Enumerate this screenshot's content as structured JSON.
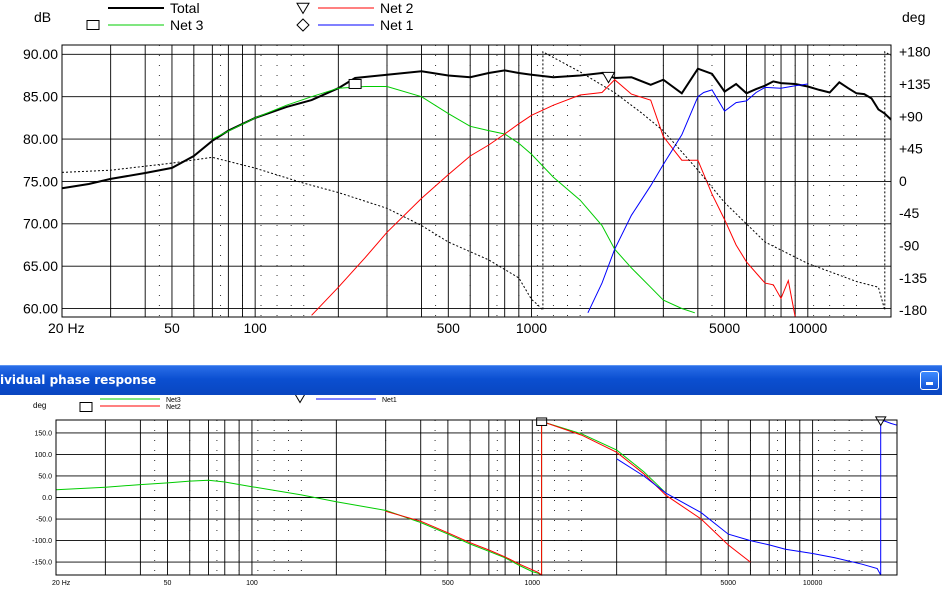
{
  "window": {
    "title": "ividual phase response",
    "minimize_icon": "minimize-icon"
  },
  "chart_data": [
    {
      "type": "line",
      "y_unit_left": "dB",
      "y_unit_right": "deg",
      "x_scale": "log",
      "xlim": [
        20,
        20000
      ],
      "ylim": [
        59,
        90
      ],
      "y2lim": [
        -180,
        180
      ],
      "grid": true,
      "legend_placement": "top",
      "x_tick_labels": [
        "20 Hz",
        "50",
        "100",
        "500",
        "1000",
        "5000",
        "10000"
      ],
      "x_ticks": [
        20,
        50,
        100,
        500,
        1000,
        5000,
        10000
      ],
      "y_tick_labels": [
        "90.00",
        "85.00",
        "80.00",
        "75.00",
        "70.00",
        "65.00",
        "60.00"
      ],
      "y_ticks": [
        90,
        85,
        80,
        75,
        70,
        65,
        60
      ],
      "y2_tick_labels": [
        "+180",
        "+135",
        "+90",
        "+45",
        "0",
        "-45",
        "-90",
        "-135",
        "-180"
      ],
      "y2_ticks": [
        180,
        135,
        90,
        45,
        0,
        -45,
        -90,
        -135,
        -180
      ],
      "legend": [
        {
          "name": "Total",
          "color": "#000000",
          "marker": "none"
        },
        {
          "name": "Net 3",
          "color": "#00cc00",
          "marker": "square"
        },
        {
          "name": "Net 2",
          "color": "#ff0000",
          "marker": "triangle-down"
        },
        {
          "name": "Net 1",
          "color": "#0000ff",
          "marker": "diamond"
        }
      ],
      "series": [
        {
          "name": "Total",
          "axis": "dB",
          "color": "#000000",
          "x": [
            20,
            25,
            30,
            40,
            50,
            60,
            70,
            80,
            100,
            130,
            160,
            200,
            230,
            300,
            400,
            500,
            600,
            700,
            800,
            900,
            1000,
            1200,
            1500,
            1800,
            2000,
            2300,
            2700,
            3000,
            3500,
            4000,
            4500,
            5000,
            5500,
            6000,
            6500,
            7000,
            7500,
            8000,
            9000,
            10000,
            11000,
            12000,
            13000,
            14000,
            15000,
            16000,
            17000,
            18000,
            19000,
            20000
          ],
          "y": [
            74.2,
            74.7,
            75.3,
            76,
            76.6,
            78,
            79.8,
            81,
            82.5,
            83.8,
            84.6,
            86,
            87.2,
            87.6,
            88,
            87.5,
            87.3,
            87.8,
            88.1,
            87.8,
            87.6,
            87.3,
            87.5,
            87.8,
            87.2,
            87.3,
            86.4,
            87,
            85.4,
            88.3,
            87.7,
            85.6,
            86.5,
            85.4,
            85.9,
            86.3,
            86.8,
            86.6,
            86.5,
            86.2,
            85.8,
            85.5,
            86.7,
            86,
            85.4,
            85.3,
            84.8,
            83.5,
            83,
            82.3
          ]
        },
        {
          "name": "Net 3",
          "axis": "dB",
          "color": "#00cc00",
          "x": [
            70,
            100,
            130,
            160,
            200,
            250,
            300,
            400,
            500,
            600,
            700,
            800,
            900,
            1000,
            1200,
            1500,
            1800,
            2000,
            2300,
            2700,
            3000,
            3500,
            3900
          ],
          "y": [
            80,
            82.5,
            84,
            85,
            86,
            86.2,
            86.2,
            85,
            83,
            81.5,
            81,
            80.6,
            79.5,
            78.2,
            75.5,
            72.8,
            69.8,
            67,
            64.8,
            62.5,
            61,
            60,
            59.5
          ]
        },
        {
          "name": "Net 2",
          "axis": "dB",
          "color": "#ff0000",
          "x": [
            160,
            200,
            250,
            300,
            400,
            500,
            600,
            700,
            800,
            900,
            1000,
            1200,
            1500,
            1800,
            2000,
            2300,
            2700,
            3000,
            3500,
            4000,
            4500,
            5000,
            5500,
            6000,
            7000,
            7500,
            8000,
            8500,
            9000
          ],
          "y": [
            59.2,
            62.5,
            66,
            69,
            73,
            75.8,
            78,
            79.3,
            80.6,
            81.8,
            82.8,
            84,
            85.2,
            85.5,
            87,
            85.3,
            84.6,
            80.3,
            77.5,
            77.5,
            73.5,
            70.5,
            67.5,
            65.5,
            63,
            62.8,
            61.2,
            63.3,
            59
          ]
        },
        {
          "name": "Net 1",
          "axis": "dB",
          "color": "#0000ff",
          "x": [
            1600,
            1800,
            2000,
            2300,
            2700,
            3000,
            3500,
            4000,
            4200,
            4500,
            5000,
            5500,
            6000,
            6500,
            7000,
            8000,
            9000,
            10000
          ],
          "y": [
            59.5,
            63,
            67,
            71,
            74.5,
            77,
            80.5,
            85,
            85.5,
            85.8,
            83.3,
            84.3,
            84.5,
            85.5,
            86.1,
            86,
            86.3,
            86.5
          ]
        },
        {
          "name": "Phase",
          "axis": "deg",
          "color": "#000000",
          "style": "dashed",
          "x": [
            20,
            30,
            50,
            70,
            100,
            150,
            200,
            300,
            400,
            500,
            700,
            900,
            1000,
            1050,
            1100,
            1500,
            2000,
            2500,
            3000,
            4000,
            5000,
            7000,
            10000,
            15000,
            18000,
            19000,
            20000
          ],
          "y": [
            12,
            15,
            25,
            33,
            18,
            -3,
            -16,
            -38,
            -62,
            -85,
            -110,
            -135,
            -165,
            -172,
            180,
            152,
            123,
            95,
            70,
            15,
            -30,
            -85,
            -115,
            -140,
            -148,
            180,
            175
          ]
        }
      ]
    },
    {
      "type": "line",
      "y_unit": "deg",
      "x_scale": "log",
      "xlim": [
        20,
        20000
      ],
      "ylim": [
        -180,
        180
      ],
      "grid": true,
      "legend_placement": "top",
      "x_tick_labels": [
        "20 Hz",
        "50",
        "100",
        "500",
        "1000",
        "5000",
        "10000"
      ],
      "x_ticks": [
        20,
        50,
        100,
        500,
        1000,
        5000,
        10000
      ],
      "y_tick_labels": [
        "150.0",
        "100.0",
        "50.0",
        "0.0",
        "-50.0",
        "-100.0",
        "-150.0"
      ],
      "y_ticks": [
        150,
        100,
        50,
        0,
        -50,
        -100,
        -150
      ],
      "legend": [
        {
          "name": "Net3",
          "color": "#00cc00",
          "marker": "square"
        },
        {
          "name": "Net2",
          "color": "#ff0000",
          "marker": "square"
        },
        {
          "name": "Net1",
          "color": "#0000ff",
          "marker": "triangle-down"
        }
      ],
      "series": [
        {
          "name": "Net3",
          "color": "#00cc00",
          "x": [
            20,
            30,
            40,
            50,
            60,
            70,
            80,
            100,
            150,
            200,
            300,
            400,
            500,
            600,
            700,
            800,
            900,
            1000,
            1050,
            1080,
            1100,
            1500,
            2000,
            2500,
            3000
          ],
          "y": [
            18,
            24,
            30,
            34,
            38,
            40,
            36,
            25,
            6,
            -10,
            -30,
            -58,
            -85,
            -108,
            -125,
            -140,
            -158,
            -172,
            -176,
            170,
            175,
            148,
            110,
            60,
            10
          ]
        },
        {
          "name": "Net2",
          "color": "#ff0000",
          "x": [
            300,
            400,
            500,
            600,
            700,
            800,
            900,
            1000,
            1050,
            1080,
            1100,
            1500,
            2000,
            2500,
            3000,
            4000,
            5000,
            6000
          ],
          "y": [
            -32,
            -55,
            -82,
            -105,
            -122,
            -138,
            -155,
            -168,
            -174,
            170,
            175,
            145,
            105,
            55,
            5,
            -50,
            -110,
            -150
          ]
        },
        {
          "name": "Net1",
          "color": "#0000ff",
          "x": [
            2000,
            2500,
            3000,
            4000,
            5000,
            6000,
            7000,
            8000,
            10000,
            12000,
            15000,
            17000,
            17500,
            18000,
            19000,
            20000
          ],
          "y": [
            90,
            50,
            10,
            -35,
            -85,
            -100,
            -110,
            -120,
            -130,
            -140,
            -155,
            -165,
            175,
            178,
            172,
            168
          ]
        }
      ]
    }
  ]
}
